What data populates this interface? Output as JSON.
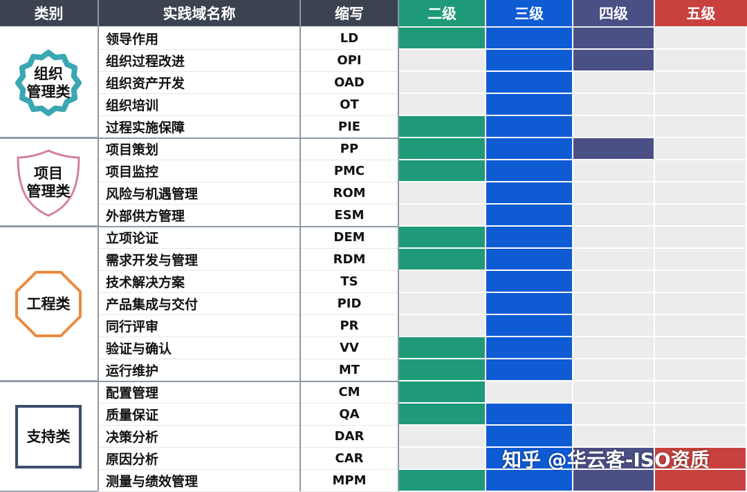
{
  "headers": {
    "category": "类别",
    "name": "实践域名称",
    "abbr": "缩写",
    "level2": "二级",
    "level3": "三级",
    "level4": "四级",
    "level5": "五级"
  },
  "colors": {
    "header_dark": "#3c4350",
    "level2": "#1f9a78",
    "level3": "#0f5bd4",
    "level4": "#4a4f86",
    "level5": "#c8413f",
    "empty": "#ececec"
  },
  "groups": [
    {
      "label_line1": "组织",
      "label_line2": "管理类",
      "shape": "flower",
      "color": "#3aa7b3",
      "rows": 5
    },
    {
      "label_line1": "项目",
      "label_line2": "管理类",
      "shape": "shield",
      "color": "#d3809a",
      "rows": 4
    },
    {
      "label_line1": "工程类",
      "label_line2": "",
      "shape": "octagon",
      "color": "#ea8a3f",
      "rows": 7
    },
    {
      "label_line1": "支持类",
      "label_line2": "",
      "shape": "square",
      "color": "#3c4d6b",
      "rows": 5
    }
  ],
  "rows": [
    {
      "name": "领导作用",
      "abbr": "LD",
      "levels": [
        1,
        1,
        1,
        0
      ]
    },
    {
      "name": "组织过程改进",
      "abbr": "OPI",
      "levels": [
        0,
        1,
        1,
        0
      ]
    },
    {
      "name": "组织资产开发",
      "abbr": "OAD",
      "levels": [
        0,
        1,
        0,
        0
      ]
    },
    {
      "name": "组织培训",
      "abbr": "OT",
      "levels": [
        0,
        1,
        0,
        0
      ]
    },
    {
      "name": "过程实施保障",
      "abbr": "PIE",
      "levels": [
        1,
        1,
        0,
        0
      ]
    },
    {
      "name": "项目策划",
      "abbr": "PP",
      "levels": [
        1,
        1,
        1,
        0
      ]
    },
    {
      "name": "项目监控",
      "abbr": "PMC",
      "levels": [
        1,
        1,
        0,
        0
      ]
    },
    {
      "name": "风险与机遇管理",
      "abbr": "ROM",
      "levels": [
        0,
        1,
        0,
        0
      ]
    },
    {
      "name": "外部供方管理",
      "abbr": "ESM",
      "levels": [
        0,
        1,
        0,
        0
      ]
    },
    {
      "name": "立项论证",
      "abbr": "DEM",
      "levels": [
        1,
        1,
        0,
        0
      ]
    },
    {
      "name": "需求开发与管理",
      "abbr": "RDM",
      "levels": [
        1,
        1,
        0,
        0
      ]
    },
    {
      "name": "技术解决方案",
      "abbr": "TS",
      "levels": [
        0,
        1,
        0,
        0
      ]
    },
    {
      "name": "产品集成与交付",
      "abbr": "PID",
      "levels": [
        0,
        1,
        0,
        0
      ]
    },
    {
      "name": "同行评审",
      "abbr": "PR",
      "levels": [
        0,
        1,
        0,
        0
      ]
    },
    {
      "name": "验证与确认",
      "abbr": "VV",
      "levels": [
        1,
        1,
        0,
        0
      ]
    },
    {
      "name": "运行维护",
      "abbr": "MT",
      "levels": [
        1,
        1,
        0,
        0
      ]
    },
    {
      "name": "配置管理",
      "abbr": "CM",
      "levels": [
        1,
        0,
        0,
        0
      ]
    },
    {
      "name": "质量保证",
      "abbr": "QA",
      "levels": [
        1,
        1,
        0,
        0
      ]
    },
    {
      "name": "决策分析",
      "abbr": "DAR",
      "levels": [
        0,
        1,
        0,
        0
      ]
    },
    {
      "name": "原因分析",
      "abbr": "CAR",
      "levels": [
        0,
        1,
        1,
        1
      ]
    },
    {
      "name": "测量与绩效管理",
      "abbr": "MPM",
      "levels": [
        1,
        1,
        1,
        1
      ]
    }
  ],
  "watermark": "知乎 @华云客-ISO资质"
}
